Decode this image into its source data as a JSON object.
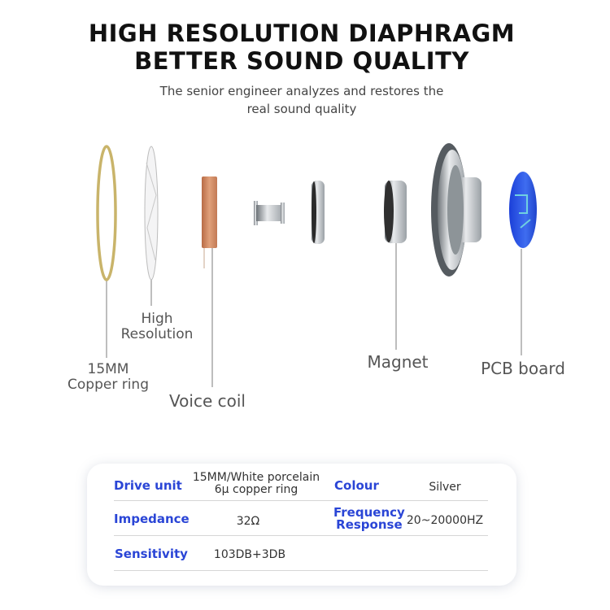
{
  "header": {
    "title_line1": "HIGH RESOLUTION DIAPHRAGM",
    "title_line2": "BETTER SOUND QUALITY",
    "subtitle_line1": "The senior engineer analyzes and restores the",
    "subtitle_line2": "real sound quality"
  },
  "components": {
    "high_resolution": [
      "High",
      "Resolution"
    ],
    "copper_ring": [
      "15MM",
      "Copper ring"
    ],
    "voice_coil": "Voice coil",
    "magnet": "Magnet",
    "pcb_board": "PCB board"
  },
  "specs": {
    "label_color": "#2a45d6",
    "rows": [
      {
        "label1": "Drive unit",
        "value1": [
          "15MM/White porcelain",
          "6μ copper ring"
        ],
        "label2": [
          "Colour"
        ],
        "value2": "Silver"
      },
      {
        "label1": "Impedance",
        "value1": [
          "32Ω"
        ],
        "label2": [
          "Frequency",
          "Response"
        ],
        "value2": "20~20000HZ"
      },
      {
        "label1": "Sensitivity",
        "value1": [
          "103DB+3DB"
        ]
      }
    ]
  }
}
